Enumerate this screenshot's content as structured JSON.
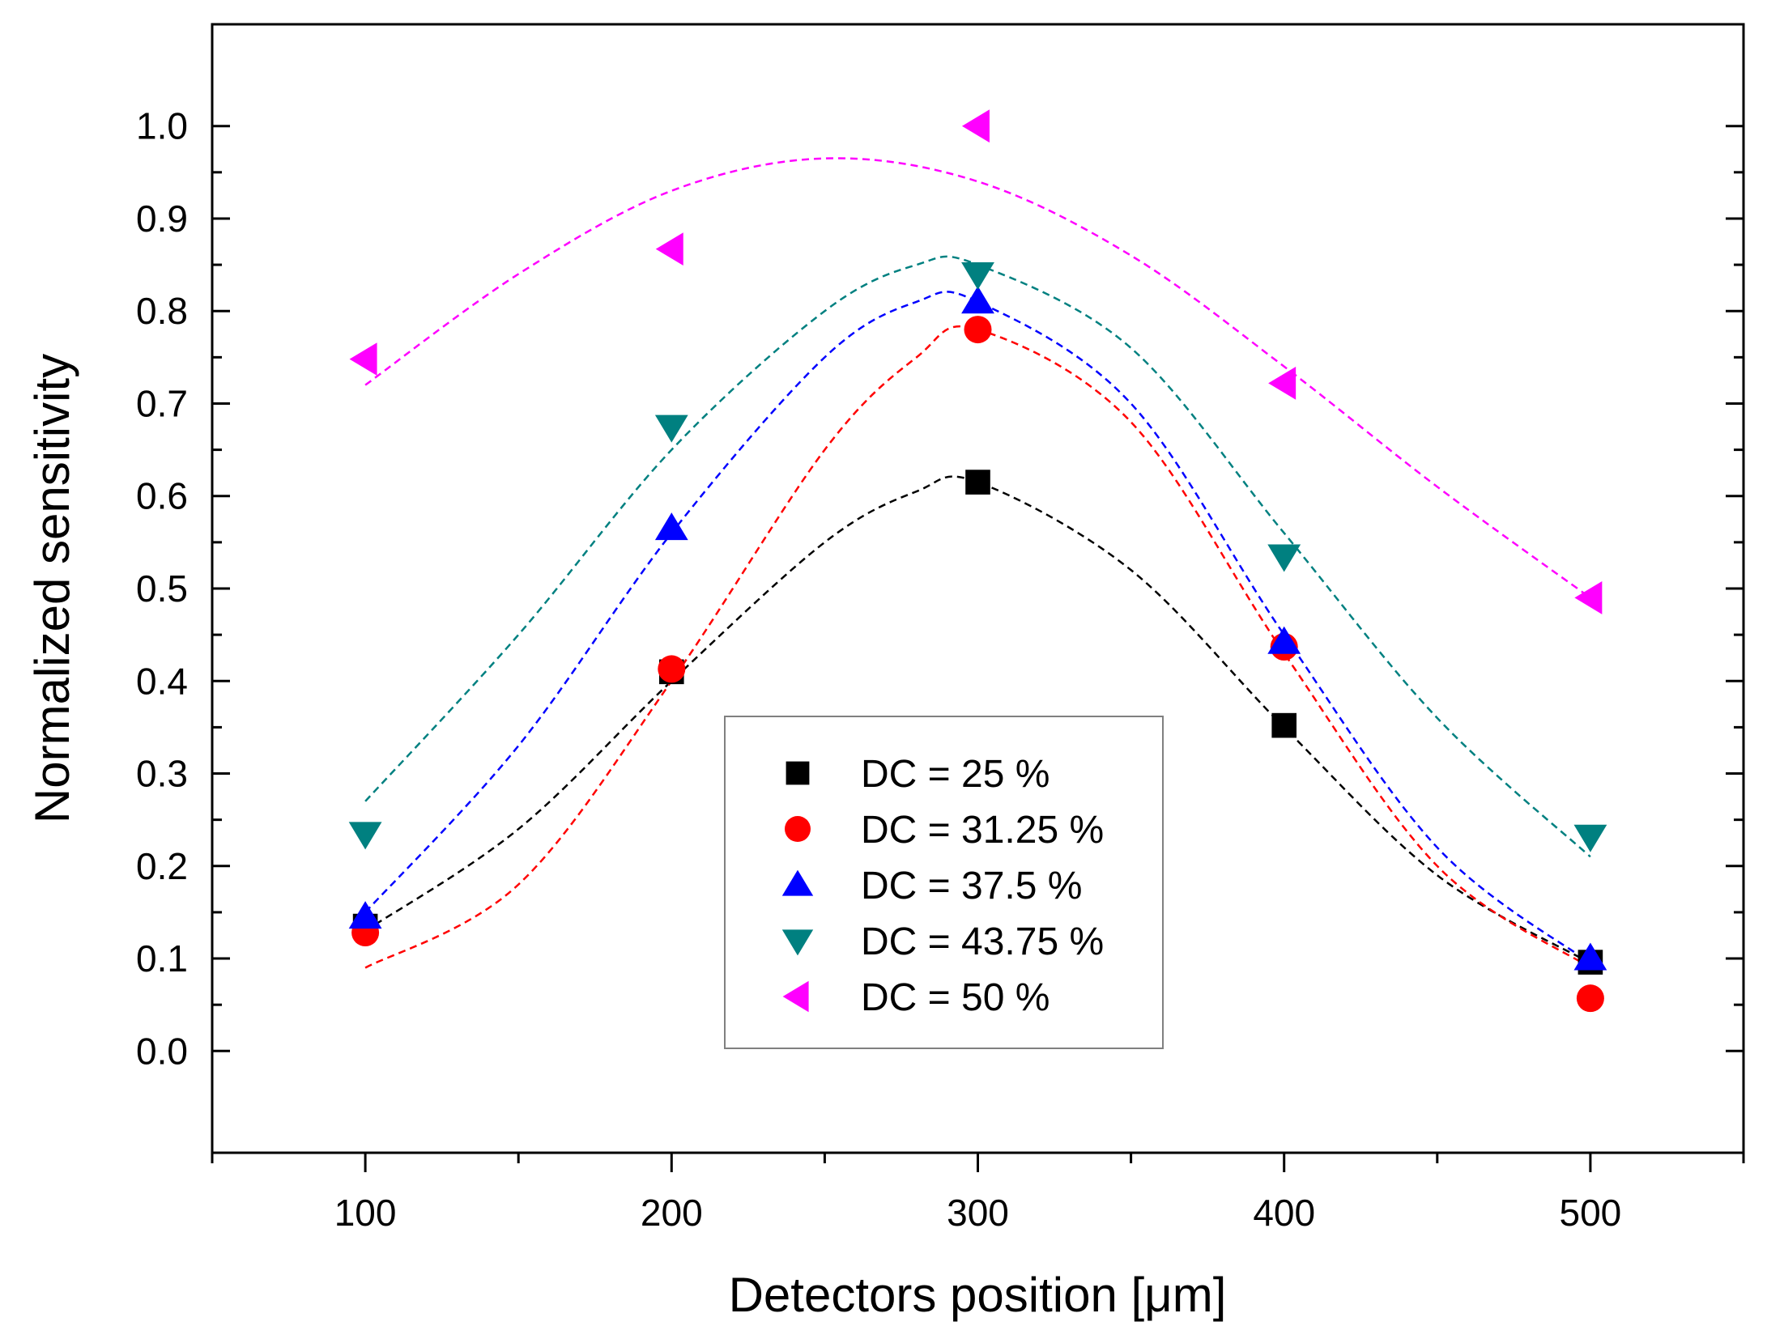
{
  "chart_data": {
    "type": "scatter",
    "title": "",
    "xlabel": "Detectors position [μm]",
    "ylabel": "Normalized sensitivity",
    "xlim": [
      50,
      550
    ],
    "ylim": [
      -0.11,
      1.11
    ],
    "xticks": [
      100,
      200,
      300,
      400,
      500
    ],
    "xticks_minor": [
      50,
      150,
      250,
      350,
      450,
      550
    ],
    "yticks": [
      0.0,
      0.1,
      0.2,
      0.3,
      0.4,
      0.5,
      0.6,
      0.7,
      0.8,
      0.9,
      1.0
    ],
    "ytick_labels": [
      "0.0",
      "0.1",
      "0.2",
      "0.3",
      "0.4",
      "0.5",
      "0.6",
      "0.7",
      "0.8",
      "0.9",
      "1.0"
    ],
    "grid": false,
    "legend_position": "bottom-center",
    "x": [
      100,
      200,
      300,
      400,
      500
    ],
    "series": [
      {
        "name": "DC = 25 %",
        "marker": "square",
        "color": "#000000",
        "values": [
          0.135,
          0.41,
          0.615,
          0.352,
          0.096
        ],
        "fit_curve": {
          "x": [
            100,
            150,
            200,
            250,
            280,
            300,
            350,
            400,
            450,
            500
          ],
          "y": [
            0.13,
            0.24,
            0.4,
            0.55,
            0.605,
            0.615,
            0.52,
            0.35,
            0.19,
            0.095
          ]
        }
      },
      {
        "name": "DC = 31.25 %",
        "marker": "circle",
        "color": "#ff0000",
        "values": [
          0.128,
          0.413,
          0.78,
          0.437,
          0.057
        ],
        "fit_curve": {
          "x": [
            100,
            150,
            200,
            250,
            280,
            300,
            350,
            400,
            450,
            500
          ],
          "y": [
            0.09,
            0.18,
            0.4,
            0.65,
            0.75,
            0.78,
            0.68,
            0.43,
            0.2,
            0.09
          ]
        }
      },
      {
        "name": "DC = 37.5 %",
        "marker": "triangle-up",
        "color": "#0000ff",
        "values": [
          0.145,
          0.565,
          0.81,
          0.442,
          0.1
        ],
        "fit_curve": {
          "x": [
            100,
            150,
            200,
            250,
            280,
            300,
            350,
            400,
            450,
            500
          ],
          "y": [
            0.15,
            0.33,
            0.56,
            0.75,
            0.81,
            0.81,
            0.7,
            0.45,
            0.22,
            0.095
          ]
        }
      },
      {
        "name": "DC = 43.75 %",
        "marker": "triangle-down",
        "color": "#008080",
        "values": [
          0.235,
          0.675,
          0.84,
          0.535,
          0.232
        ],
        "fit_curve": {
          "x": [
            100,
            150,
            200,
            250,
            280,
            300,
            350,
            400,
            450,
            500
          ],
          "y": [
            0.27,
            0.45,
            0.65,
            0.8,
            0.85,
            0.85,
            0.76,
            0.56,
            0.36,
            0.21
          ]
        }
      },
      {
        "name": "DC = 50 %",
        "marker": "triangle-left",
        "color": "#ff00ff",
        "values": [
          0.748,
          0.867,
          1.0,
          0.722,
          0.49
        ],
        "fit_curve": {
          "x": [
            100,
            150,
            200,
            250,
            300,
            350,
            400,
            450,
            500
          ],
          "y": [
            0.72,
            0.84,
            0.93,
            0.965,
            0.94,
            0.86,
            0.74,
            0.61,
            0.49
          ]
        }
      }
    ]
  }
}
